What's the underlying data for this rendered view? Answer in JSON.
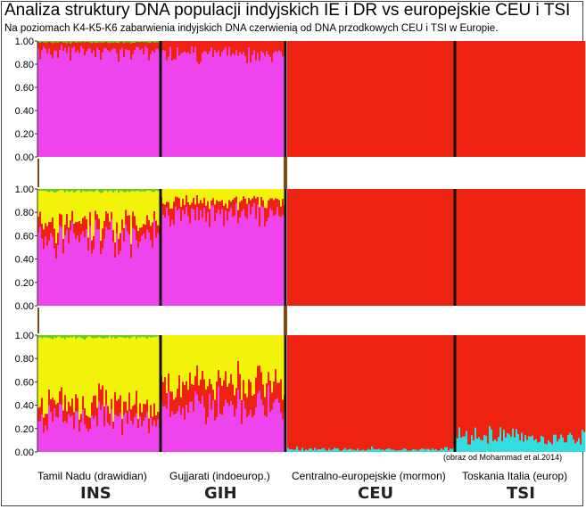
{
  "title": "Analiza struktury DNA populacji indyjskich IE i DR vs europejskie CEU i TSI",
  "subtitle": "Na poziomach K4-K5-K6 zabarwienia indyjskich DNA czerwienią od DNA przodkowych CEU i TSI w Europie.",
  "credit": "(obraz od Mohammad et al.2014)",
  "colors": {
    "magenta": "#ee44ee",
    "red": "#ee2211",
    "yellow": "#f2f20a",
    "green": "#66cc22",
    "cyan": "#33dddd",
    "separator": "#111111",
    "band": "#7a4a1a"
  },
  "populations": [
    {
      "label": "Tamil Nadu (drawidian)",
      "code": "INS"
    },
    {
      "label": "Gujjarati (indoeurop.)",
      "code": "GIH"
    },
    {
      "label": "Centralno-europejskie (mormon)",
      "code": "CEU"
    },
    {
      "label": "Toskania Italia (europ)",
      "code": "TSI"
    }
  ],
  "chart_data": {
    "type": "bar",
    "stacked": true,
    "panels": [
      {
        "ylim": [
          0,
          1
        ],
        "yticks": [
          "0.00",
          "0.20",
          "0.40",
          "0.60",
          "0.80",
          "1.00"
        ],
        "groups": [
          {
            "population": "INS",
            "mean_proportions": {
              "magenta": 0.92,
              "red": 0.07,
              "green": 0.01
            }
          },
          {
            "population": "GIH",
            "mean_proportions": {
              "magenta": 0.9,
              "red": 0.1
            }
          },
          {
            "population": "CEU",
            "mean_proportions": {
              "red": 1.0
            }
          },
          {
            "population": "TSI",
            "mean_proportions": {
              "red": 1.0
            }
          }
        ]
      },
      {
        "ylim": [
          0,
          1
        ],
        "yticks": [
          "0.00",
          "0.20",
          "0.40",
          "0.60",
          "0.80",
          "1.00"
        ],
        "groups": [
          {
            "population": "INS",
            "mean_proportions": {
              "magenta": 0.58,
              "red": 0.12,
              "yellow": 0.28,
              "green": 0.02
            }
          },
          {
            "population": "GIH",
            "mean_proportions": {
              "magenta": 0.8,
              "red": 0.1,
              "yellow": 0.1
            }
          },
          {
            "population": "CEU",
            "mean_proportions": {
              "red": 1.0
            }
          },
          {
            "population": "TSI",
            "mean_proportions": {
              "red": 1.0
            }
          }
        ]
      },
      {
        "ylim": [
          0,
          1
        ],
        "yticks": [
          "0.00",
          "0.20",
          "0.40",
          "0.60",
          "0.80",
          "1.00"
        ],
        "groups": [
          {
            "population": "INS",
            "mean_proportions": {
              "magenta": 0.28,
              "red": 0.12,
              "yellow": 0.58,
              "green": 0.02
            }
          },
          {
            "population": "GIH",
            "mean_proportions": {
              "magenta": 0.4,
              "red": 0.2,
              "yellow": 0.4
            }
          },
          {
            "population": "CEU",
            "mean_proportions": {
              "red": 0.98,
              "cyan": 0.02
            }
          },
          {
            "population": "TSI",
            "mean_proportions": {
              "red": 0.88,
              "cyan": 0.12
            }
          }
        ]
      }
    ]
  }
}
